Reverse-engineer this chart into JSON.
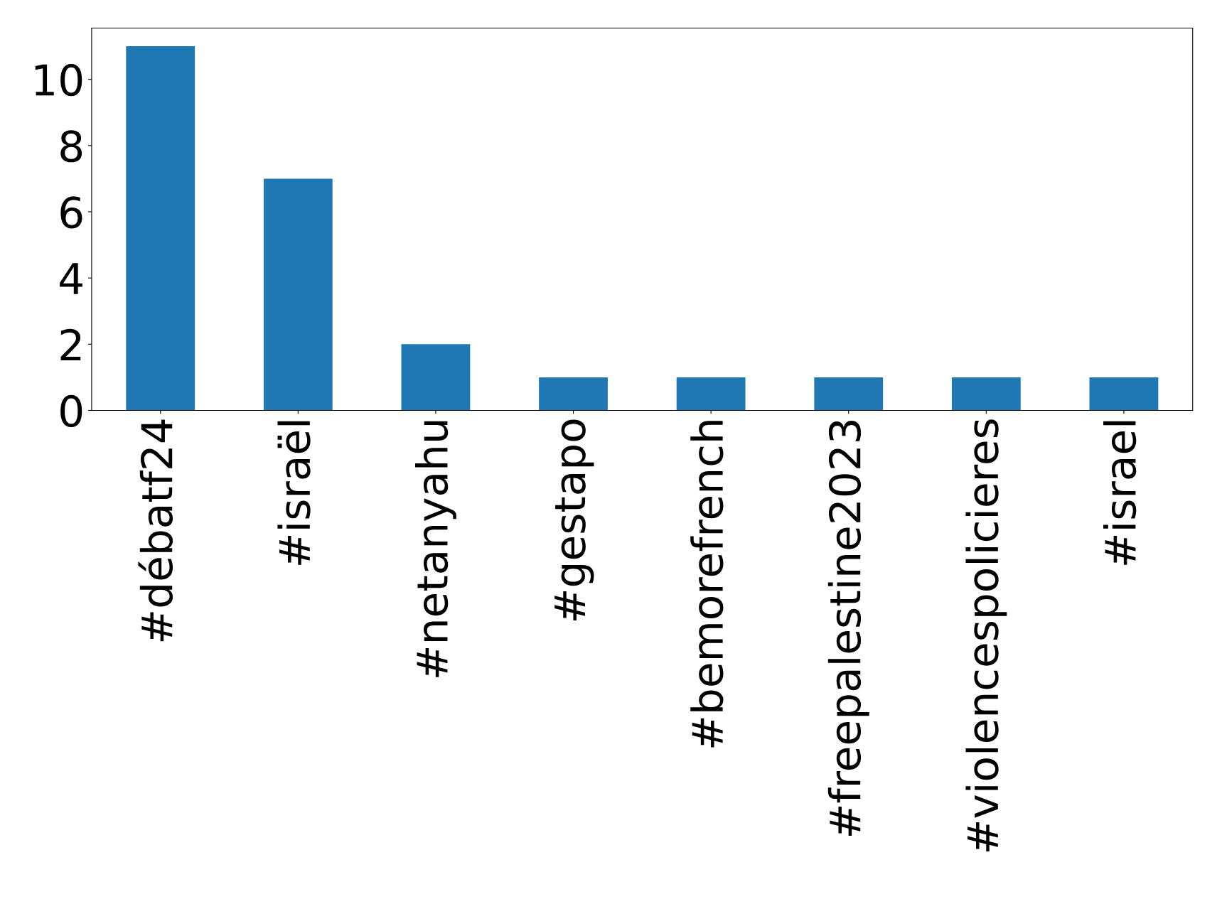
{
  "chart_data": {
    "type": "bar",
    "categories": [
      "#débatf24",
      "#israël",
      "#netanyahu",
      "#gestapo",
      "#bemorefrench",
      "#freepalestine2023",
      "#violencespolicieres",
      "#israel"
    ],
    "values": [
      11,
      7,
      2,
      1,
      1,
      1,
      1,
      1
    ],
    "color": "#1f77b4",
    "ylim": [
      0,
      11.55
    ],
    "yticks": [
      0,
      2,
      4,
      6,
      8,
      10
    ],
    "grid": false,
    "legend": false
  }
}
